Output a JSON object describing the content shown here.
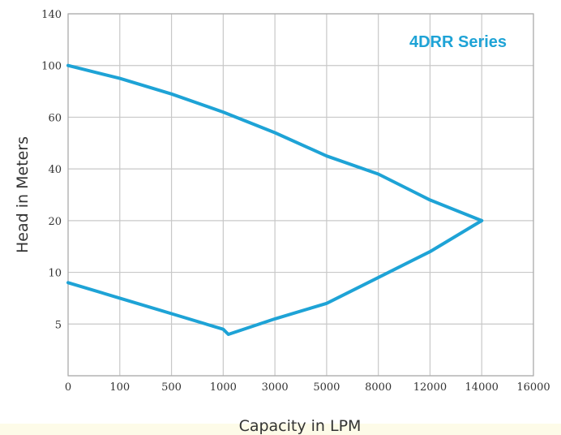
{
  "chart_data": {
    "type": "line",
    "title": "4DRR Series",
    "xlabel": "Capacity in LPM",
    "ylabel": "Head in Meters",
    "x_ticks": [
      "0",
      "100",
      "500",
      "1000",
      "3000",
      "5000",
      "8000",
      "12000",
      "14000",
      "16000"
    ],
    "y_ticks": [
      "5",
      "10",
      "20",
      "40",
      "60",
      "100",
      "140"
    ],
    "grid": true,
    "legend": "none",
    "series": [
      {
        "points": [
          {
            "x": 0,
            "y": 100
          },
          {
            "x": 100,
            "y": 90
          },
          {
            "x": 500,
            "y": 78
          },
          {
            "x": 1000,
            "y": 64
          },
          {
            "x": 3000,
            "y": 54
          },
          {
            "x": 5000,
            "y": 45
          },
          {
            "x": 8000,
            "y": 38
          },
          {
            "x": 12000,
            "y": 28
          },
          {
            "x": 14000,
            "y": 20
          }
        ]
      },
      {
        "points": [
          {
            "x": 0,
            "y": 9
          },
          {
            "x": 100,
            "y": 7.5
          },
          {
            "x": 500,
            "y": 6
          },
          {
            "x": 1000,
            "y": 4.5
          },
          {
            "x": 1200,
            "y": 4
          },
          {
            "x": 3000,
            "y": 5.5
          },
          {
            "x": 5000,
            "y": 7
          },
          {
            "x": 8000,
            "y": 9.5
          },
          {
            "x": 12000,
            "y": 14
          },
          {
            "x": 14000,
            "y": 20
          }
        ]
      }
    ],
    "colors": {
      "series": "#1ea3d6",
      "title": "#1ea3d6",
      "grid": "#c8c8c8",
      "text": "#333333"
    }
  }
}
